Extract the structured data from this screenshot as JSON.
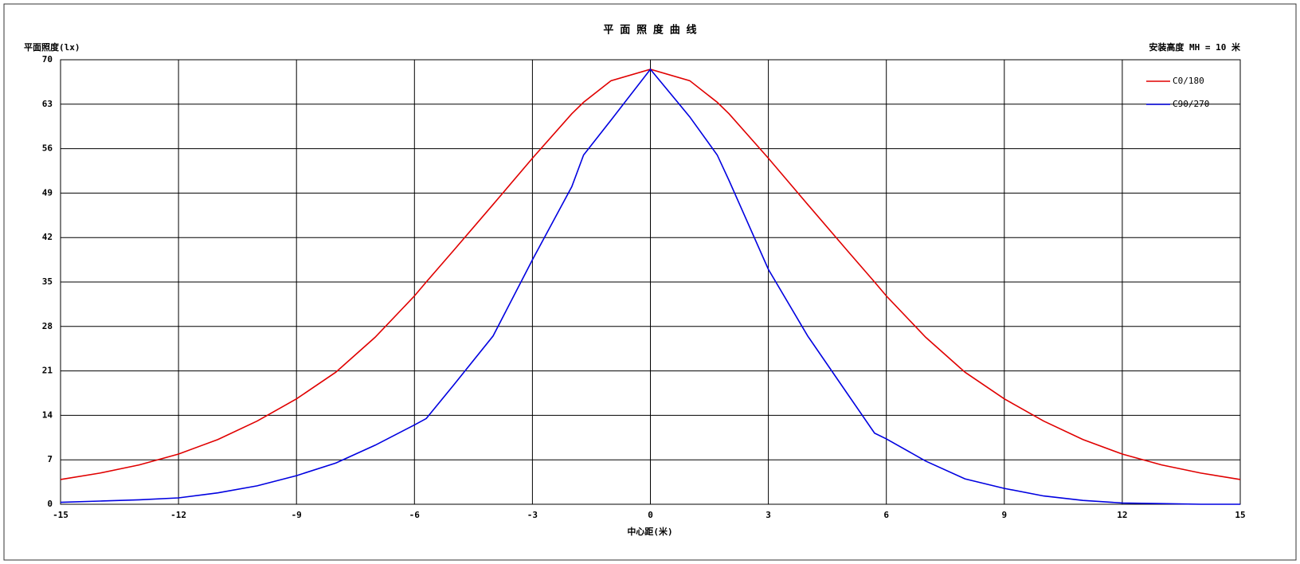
{
  "chart_data": {
    "type": "line",
    "title": "平 面 照 度 曲 线",
    "y_label": "平面照度(lx)",
    "x_label": "中心距(米)",
    "annotation": "安装高度 MH = 10 米",
    "x": [
      -15,
      -14,
      -13,
      -12,
      -11,
      -10,
      -9,
      -8,
      -7,
      -6,
      -5.7,
      -5,
      -4,
      -3,
      -2,
      -1.7,
      -1,
      0,
      1,
      1.7,
      2,
      3,
      4,
      5,
      5.7,
      6,
      7,
      8,
      9,
      10,
      11,
      12,
      13,
      14,
      15
    ],
    "series": [
      {
        "name": "C0/180",
        "color": "#e00000",
        "values": [
          3.9,
          4.9,
          6.2,
          7.9,
          10.2,
          13.1,
          16.6,
          20.8,
          26.3,
          32.8,
          35,
          40,
          47.2,
          54.5,
          61.5,
          63.3,
          66.7,
          68.5,
          66.7,
          63.3,
          61.5,
          54.5,
          47.2,
          40,
          35,
          32.8,
          26.3,
          20.8,
          16.6,
          13.1,
          10.2,
          7.9,
          6.2,
          4.9,
          3.9
        ]
      },
      {
        "name": "C90/270",
        "color": "#0000e0",
        "values": [
          0.3,
          0.5,
          0.7,
          1.0,
          1.8,
          2.9,
          4.5,
          6.5,
          9.3,
          12.5,
          13.5,
          18.8,
          26.5,
          38.5,
          50,
          55,
          60.5,
          68.5,
          61,
          55,
          51,
          37,
          26.5,
          17.5,
          11.2,
          10.3,
          6.8,
          4,
          2.5,
          1.3,
          0.6,
          0.2,
          0.1,
          0,
          0
        ]
      }
    ],
    "xlim": [
      -15,
      15
    ],
    "xticks": [
      -15,
      -12,
      -9,
      -6,
      -3,
      0,
      3,
      6,
      9,
      12,
      15
    ],
    "ylim": [
      0,
      70
    ],
    "yticks": [
      0,
      7,
      14,
      21,
      28,
      35,
      42,
      49,
      56,
      63,
      70
    ],
    "grid": true,
    "legend": "top-right"
  }
}
